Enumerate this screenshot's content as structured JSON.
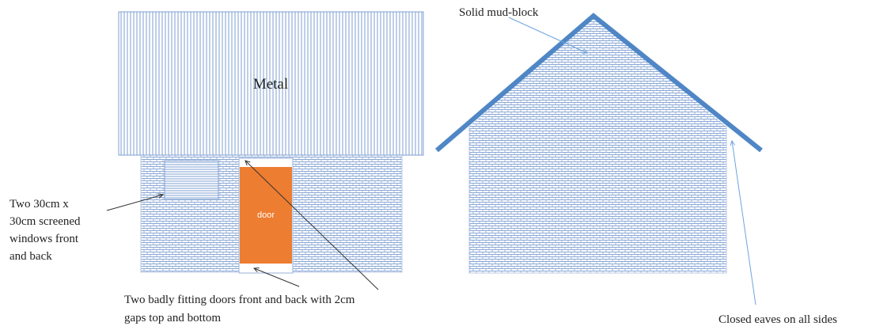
{
  "labels": {
    "roof": "Metal",
    "door": "door",
    "windows": [
      "Two 30cm x",
      "30cm screened",
      "windows front",
      "and back"
    ],
    "doors": [
      "Two badly fitting doors front and back with 2cm",
      "gaps top and  bottom"
    ],
    "mud_block": "Solid mud-block",
    "eaves": "Closed eaves on all sides"
  },
  "colors": {
    "roof_hatch": "#7e9fd0",
    "wall_pattern": "#7e9fd0",
    "door_fill": "#ed7d31",
    "roof_stroke": "#4f86c6",
    "arrow_dark": "#333333",
    "arrow_blue": "#6fa4dc"
  }
}
